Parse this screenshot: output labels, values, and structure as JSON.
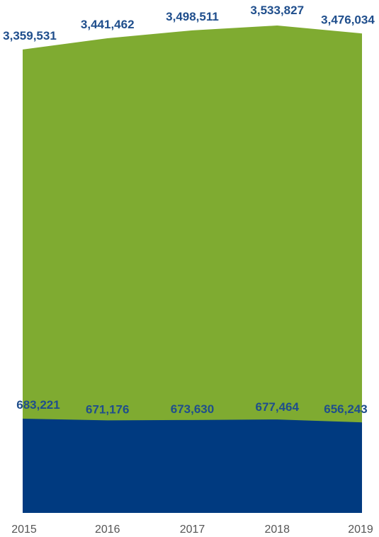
{
  "chart_data": {
    "type": "area",
    "categories": [
      "2015",
      "2016",
      "2017",
      "2018",
      "2019"
    ],
    "series": [
      {
        "values": [
          3359531,
          3441462,
          3498511,
          3533827,
          3476034
        ],
        "value_labels": [
          "3,359,531",
          "3,441,462",
          "3,498,511",
          "3,533,827",
          "3,476,034"
        ],
        "color": "#7fab31"
      },
      {
        "values": [
          683221,
          671176,
          673630,
          677464,
          656243
        ],
        "value_labels": [
          "683,221",
          "671,176",
          "673,630",
          "677,464",
          "656,243"
        ],
        "color": "#003a80"
      }
    ],
    "stacked": false,
    "ylim": [
      0,
      3533827
    ],
    "grid": false,
    "legend": "none",
    "title": "",
    "xlabel": "",
    "ylabel": ""
  }
}
